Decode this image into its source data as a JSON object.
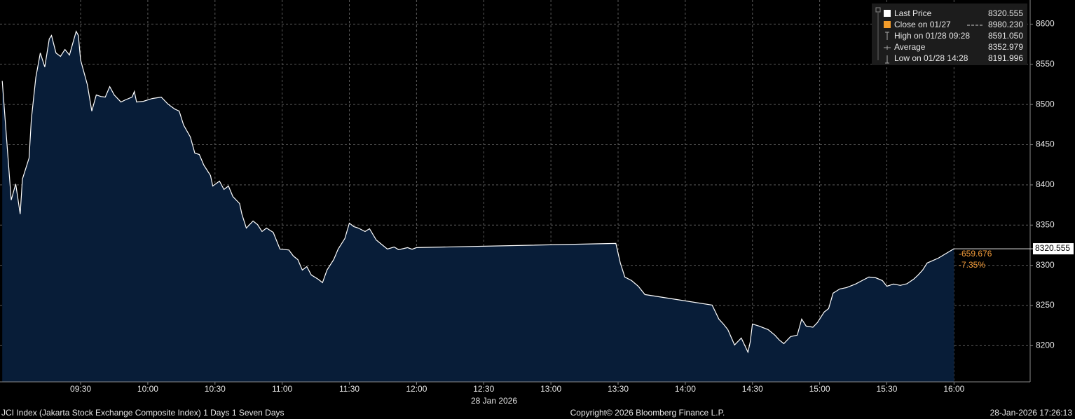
{
  "chart_data": {
    "type": "area",
    "x_caption": "28 Jan 2026",
    "x": [
      535,
      539,
      541,
      543,
      544,
      547,
      548,
      550,
      552,
      554,
      556,
      557,
      559,
      561,
      563,
      565,
      568,
      569,
      570,
      573,
      575,
      577,
      579,
      581,
      583,
      585,
      588,
      590,
      593,
      594,
      595,
      598,
      602,
      606,
      609,
      612,
      614,
      616,
      619,
      621,
      623,
      625,
      628,
      629,
      632,
      634,
      636,
      638,
      641,
      642,
      644,
      647,
      649,
      651,
      653,
      656,
      659,
      663,
      665,
      667,
      669,
      671,
      673,
      676,
      678,
      680,
      683,
      685,
      688,
      690,
      692,
      694,
      697,
      699,
      702,
      705,
      707,
      710,
      712,
      716,
      718,
      720,
      809,
      811,
      813,
      816,
      819,
      822,
      852,
      855,
      857,
      859,
      862,
      865,
      868,
      869,
      870,
      873,
      877,
      880,
      882,
      884,
      887,
      890,
      892,
      894,
      897,
      899,
      902,
      904,
      906,
      909,
      912,
      916,
      919,
      922,
      925,
      928,
      930,
      933,
      936,
      939,
      942,
      944,
      946,
      948,
      953,
      960
    ],
    "series": [
      {
        "name": "Last Price",
        "color": "#ffffff",
        "fill": "#081d38",
        "values": [
          8529.3,
          8381.2,
          8401.2,
          8363.8,
          8407.3,
          8433.5,
          8481.4,
          8533.6,
          8564.1,
          8546.7,
          8581.5,
          8585.9,
          8564.1,
          8559.8,
          8568.5,
          8561.5,
          8591.05,
          8585.9,
          8555.4,
          8524.9,
          8491.8,
          8511.9,
          8510,
          8509.2,
          8522.3,
          8511.9,
          8503.1,
          8505.8,
          8509.2,
          8516.2,
          8503.1,
          8504,
          8507.5,
          8509.2,
          8500.5,
          8494.4,
          8491.8,
          8474.4,
          8459.6,
          8439.6,
          8437.8,
          8424.7,
          8411.7,
          8398.6,
          8404.7,
          8394.3,
          8398.6,
          8385.5,
          8376.8,
          8363.8,
          8346.3,
          8355.1,
          8350.7,
          8342,
          8346.3,
          8341,
          8320.2,
          8319,
          8311.5,
          8307.1,
          8294.1,
          8298.4,
          8288,
          8282.8,
          8278.4,
          8294.1,
          8307.1,
          8320.2,
          8333.3,
          8352.4,
          8348.1,
          8346.3,
          8342,
          8345.5,
          8331.5,
          8324.6,
          8320.2,
          8322.8,
          8319.5,
          8322,
          8320,
          8322,
          8327.2,
          8302.8,
          8285.4,
          8281,
          8274,
          8263.6,
          8250.5,
          8233.1,
          8227,
          8220,
          8200.9,
          8209.6,
          8191.996,
          8204.4,
          8227,
          8224.4,
          8220,
          8213.1,
          8207,
          8202.6,
          8211.3,
          8213.1,
          8233.1,
          8224.4,
          8223,
          8228.7,
          8241.8,
          8246.2,
          8265.3,
          8270.6,
          8272.3,
          8276.7,
          8281,
          8285.4,
          8284.5,
          8281,
          8274,
          8276.7,
          8275,
          8277,
          8282.8,
          8288,
          8294.1,
          8302.8,
          8308.9,
          8320.555
        ]
      }
    ],
    "xlim": [
      534,
      994
    ],
    "ylim": [
      8155,
      8630
    ],
    "xticks": [
      {
        "value": 570,
        "label": "09:30"
      },
      {
        "value": 600,
        "label": "10:00"
      },
      {
        "value": 630,
        "label": "10:30"
      },
      {
        "value": 660,
        "label": "11:00"
      },
      {
        "value": 690,
        "label": "11:30"
      },
      {
        "value": 720,
        "label": "12:00"
      },
      {
        "value": 750,
        "label": "12:30"
      },
      {
        "value": 780,
        "label": "13:00"
      },
      {
        "value": 810,
        "label": "13:30"
      },
      {
        "value": 840,
        "label": "14:00"
      },
      {
        "value": 870,
        "label": "14:30"
      },
      {
        "value": 900,
        "label": "15:00"
      },
      {
        "value": 930,
        "label": "15:30"
      },
      {
        "value": 960,
        "label": "16:00"
      }
    ],
    "yticks": [
      8200,
      8250,
      8300,
      8350,
      8400,
      8450,
      8500,
      8550,
      8600
    ],
    "grid": true,
    "legend": [
      {
        "label": "Last Price",
        "value": "8320.555"
      },
      {
        "label": "Close on 01/27",
        "value": "8980.230"
      },
      {
        "label": "High on 01/28 09:28",
        "value": "8591.050"
      },
      {
        "label": "Average",
        "value": "8352.979"
      },
      {
        "label": "Low on 01/28 14:28",
        "value": "8191.996"
      }
    ],
    "change": "-659.676",
    "change_pct": "-7.35%",
    "footer": {
      "left": "JCI Index (Jakarta Stock Exchange Composite Index) 1 Days 1 Seven Days",
      "center": "Copyright© 2026 Bloomberg Finance L.P.",
      "right": "28-Jan-2026 17:26:13"
    }
  }
}
